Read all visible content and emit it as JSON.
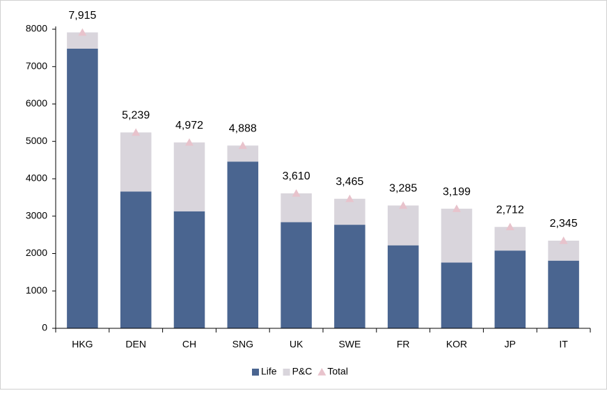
{
  "chart_data": {
    "type": "stacked_bar",
    "categories": [
      "HKG",
      "DEN",
      "CH",
      "SNG",
      "UK",
      "SWE",
      "FR",
      "KOR",
      "JP",
      "IT"
    ],
    "series": [
      {
        "name": "Life",
        "color": "#4a6590",
        "values": [
          7480,
          3660,
          3130,
          4460,
          2840,
          2770,
          2220,
          1760,
          2080,
          1810
        ]
      },
      {
        "name": "P&C",
        "color": "#d9d5dc",
        "values": [
          435,
          1579,
          1842,
          428,
          770,
          695,
          1065,
          1439,
          632,
          535
        ]
      }
    ],
    "total": {
      "name": "Total",
      "color": "#e8c3cc",
      "values": [
        7915,
        5239,
        4972,
        4888,
        3610,
        3465,
        3285,
        3199,
        2712,
        2345
      ],
      "value_labels": [
        "7,915",
        "5,239",
        "4,972",
        "4,888",
        "3,610",
        "3,465",
        "3,285",
        "3,199",
        "2,712",
        "2,345"
      ]
    },
    "ylim": [
      0,
      8000
    ],
    "yticks": [
      0,
      1000,
      2000,
      3000,
      4000,
      5000,
      6000,
      7000,
      8000
    ],
    "grid": false,
    "legend": "bottom"
  }
}
